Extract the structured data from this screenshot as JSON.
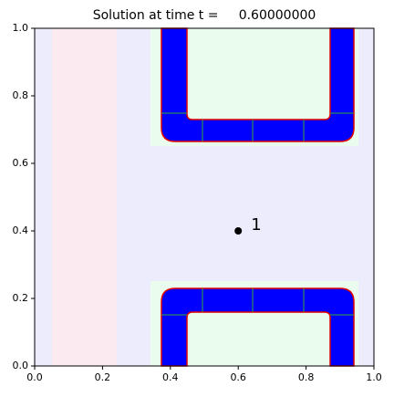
{
  "chart_data": {
    "type": "scatter",
    "title": "Solution at time t =     0.60000000",
    "x": [
      0.6
    ],
    "y": [
      0.4
    ],
    "labels": [
      "1"
    ],
    "color": "#000000",
    "xlim": [
      0,
      1
    ],
    "ylim": [
      0,
      1
    ],
    "xticks": [
      {
        "value": 0,
        "label": "0.0"
      },
      {
        "value": 0.2,
        "label": "0.2"
      },
      {
        "value": 0.4,
        "label": "0.4"
      },
      {
        "value": 0.6,
        "label": "0.6"
      },
      {
        "value": 0.8,
        "label": "0.8"
      },
      {
        "value": 1,
        "label": "1.0"
      }
    ],
    "yticks": [
      {
        "value": 0,
        "label": "0.0"
      },
      {
        "value": 0.2,
        "label": "0.2"
      },
      {
        "value": 0.4,
        "label": "0.4"
      },
      {
        "value": 0.6,
        "label": "0.6"
      },
      {
        "value": 0.8,
        "label": "0.8"
      },
      {
        "value": 1,
        "label": "1.0"
      }
    ]
  }
}
